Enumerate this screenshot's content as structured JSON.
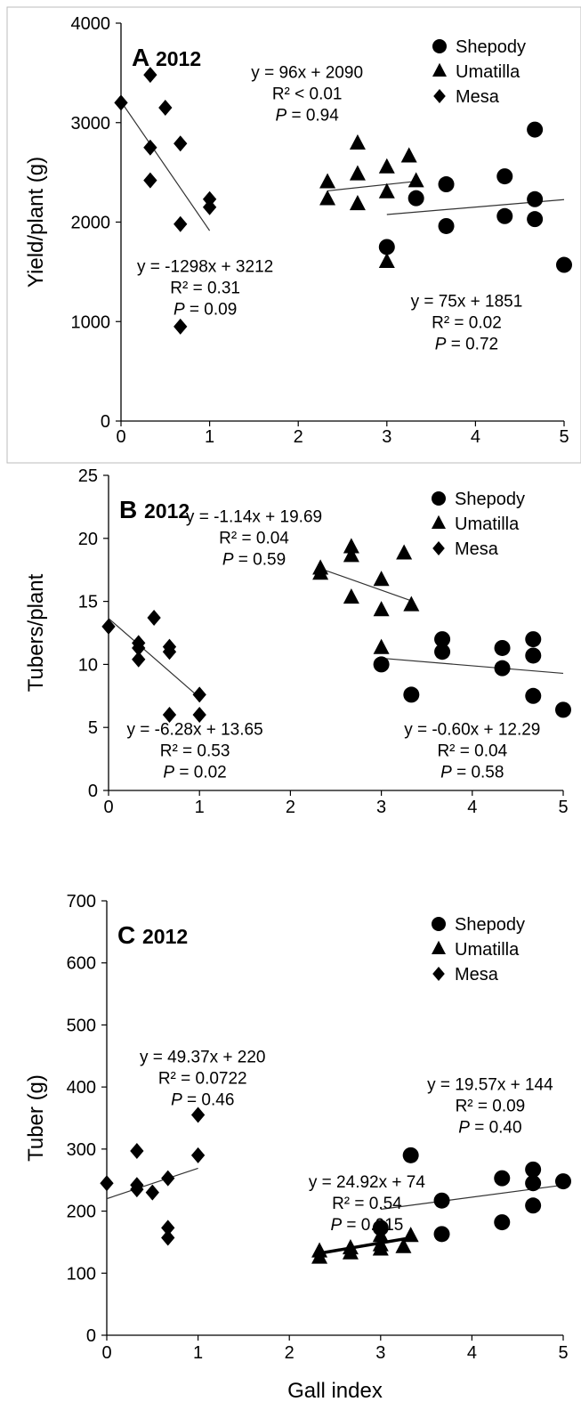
{
  "figure": {
    "xlabel": "Gall index",
    "legend": [
      {
        "name": "Shepody",
        "marker": "circle"
      },
      {
        "name": "Umatilla",
        "marker": "triangle"
      },
      {
        "name": "Mesa",
        "marker": "diamond"
      }
    ],
    "colors": {
      "marker": "#000000",
      "line": "#333333",
      "axis": "#000000",
      "panel_border": "#bbbbbb"
    }
  },
  "chart_data": [
    {
      "type": "scatter",
      "panel_letter": "A",
      "panel_year": "2012",
      "xlabel": "",
      "ylabel": "Yield/plant  (g)",
      "xlim": [
        0,
        5
      ],
      "ylim": [
        0,
        4000
      ],
      "xticks": [
        "0",
        "1",
        "2",
        "3",
        "4",
        "5"
      ],
      "yticks": [
        "0",
        "1000",
        "2000",
        "3000",
        "4000"
      ],
      "legend_position": "top-right",
      "series": [
        {
          "name": "Mesa",
          "marker": "diamond",
          "points": [
            [
              0,
              3200
            ],
            [
              0.33,
              3480
            ],
            [
              0.33,
              2750
            ],
            [
              0.33,
              2420
            ],
            [
              0.5,
              3150
            ],
            [
              0.67,
              2790
            ],
            [
              0.67,
              1980
            ],
            [
              0.67,
              950
            ],
            [
              1,
              2230
            ],
            [
              1,
              2150
            ]
          ]
        },
        {
          "name": "Umatilla",
          "marker": "triangle",
          "points": [
            [
              2.33,
              2400
            ],
            [
              2.33,
              2230
            ],
            [
              2.67,
              2790
            ],
            [
              2.67,
              2480
            ],
            [
              2.67,
              2180
            ],
            [
              3,
              2550
            ],
            [
              3,
              2300
            ],
            [
              3,
              1600
            ],
            [
              3.25,
              2660
            ],
            [
              3.33,
              2410
            ]
          ]
        },
        {
          "name": "Shepody",
          "marker": "circle",
          "points": [
            [
              3,
              1750
            ],
            [
              3.33,
              2240
            ],
            [
              3.67,
              2380
            ],
            [
              3.67,
              1960
            ],
            [
              4.33,
              2460
            ],
            [
              4.33,
              2060
            ],
            [
              4.67,
              2930
            ],
            [
              4.67,
              2230
            ],
            [
              4.67,
              2030
            ],
            [
              5,
              1570
            ]
          ]
        }
      ],
      "trendlines": [
        {
          "series": "Mesa",
          "x": [
            0,
            1
          ],
          "y": [
            3212,
            1914
          ],
          "bold": false
        },
        {
          "series": "Umatilla",
          "x": [
            2.33,
            3.33
          ],
          "y": [
            2314,
            2410
          ],
          "bold": false
        },
        {
          "series": "Shepody",
          "x": [
            3,
            5
          ],
          "y": [
            2076,
            2226
          ],
          "bold": false
        }
      ],
      "annotations": [
        {
          "lines": [
            "y = 96x  + 2090",
            "R² < 0.01",
            "P = 0.94"
          ],
          "at": [
            2.1,
            3450
          ],
          "anchor": "middle"
        },
        {
          "lines": [
            "y = -1298x  + 3212",
            "R² = 0.31",
            "P = 0.09"
          ],
          "at": [
            0.95,
            1500
          ],
          "anchor": "middle"
        },
        {
          "lines": [
            "y = 75x  + 1851",
            "R² = 0.02",
            "P = 0.72"
          ],
          "at": [
            3.9,
            1150
          ],
          "anchor": "middle"
        }
      ]
    },
    {
      "type": "scatter",
      "panel_letter": "B",
      "panel_year": "2012",
      "xlabel": "",
      "ylabel": "Tubers/plant",
      "xlim": [
        0,
        5
      ],
      "ylim": [
        0,
        25
      ],
      "xticks": [
        "0",
        "1",
        "2",
        "3",
        "4",
        "5"
      ],
      "yticks": [
        "0",
        "5",
        "10",
        "15",
        "20",
        "25"
      ],
      "legend_position": "top-right",
      "series": [
        {
          "name": "Mesa",
          "marker": "diamond",
          "points": [
            [
              0,
              13
            ],
            [
              0.33,
              11.7
            ],
            [
              0.33,
              11.3
            ],
            [
              0.33,
              10.4
            ],
            [
              0.5,
              13.7
            ],
            [
              0.67,
              11.4
            ],
            [
              0.67,
              11
            ],
            [
              0.67,
              6
            ],
            [
              1,
              7.6
            ],
            [
              1,
              6
            ]
          ]
        },
        {
          "name": "Umatilla",
          "marker": "triangle",
          "points": [
            [
              2.33,
              17.6
            ],
            [
              2.33,
              17.2
            ],
            [
              2.67,
              19.3
            ],
            [
              2.67,
              18.6
            ],
            [
              2.67,
              15.3
            ],
            [
              3,
              16.7
            ],
            [
              3,
              14.3
            ],
            [
              3,
              11.3
            ],
            [
              3.25,
              18.8
            ],
            [
              3.33,
              14.7
            ]
          ]
        },
        {
          "name": "Shepody",
          "marker": "circle",
          "points": [
            [
              3,
              10
            ],
            [
              3.33,
              7.6
            ],
            [
              3.67,
              12
            ],
            [
              3.67,
              11
            ],
            [
              4.33,
              11.3
            ],
            [
              4.33,
              9.7
            ],
            [
              4.67,
              12
            ],
            [
              4.67,
              10.7
            ],
            [
              4.67,
              7.5
            ],
            [
              5,
              6.4
            ]
          ]
        }
      ],
      "trendlines": [
        {
          "series": "Mesa",
          "x": [
            0,
            1
          ],
          "y": [
            13.65,
            7.37
          ],
          "bold": false
        },
        {
          "series": "Umatilla",
          "x": [
            2.33,
            3.33
          ],
          "y": [
            17.6,
            15.05
          ],
          "bold": false
        },
        {
          "series": "Shepody",
          "x": [
            3,
            5
          ],
          "y": [
            10.49,
            9.29
          ],
          "bold": false
        }
      ],
      "annotations": [
        {
          "lines": [
            "y = -1.14x  + 19.69",
            "R² = 0.04",
            "P = 0.59"
          ],
          "at": [
            1.6,
            21.3
          ],
          "anchor": "middle"
        },
        {
          "lines": [
            "y = -6.28x  + 13.65",
            "R² = 0.53",
            "P = 0.02"
          ],
          "at": [
            0.95,
            4.4
          ],
          "anchor": "middle"
        },
        {
          "lines": [
            "y = -0.60x  + 12.29",
            "R² = 0.04",
            "P = 0.58"
          ],
          "at": [
            4.0,
            4.4
          ],
          "anchor": "middle"
        }
      ]
    },
    {
      "type": "scatter",
      "panel_letter": "C",
      "panel_year": "2012",
      "xlabel": "Gall index",
      "ylabel": "Tuber (g)",
      "xlim": [
        0,
        5
      ],
      "ylim": [
        0,
        700
      ],
      "xticks": [
        "0",
        "1",
        "2",
        "3",
        "4",
        "5"
      ],
      "yticks": [
        "0",
        "100",
        "200",
        "300",
        "400",
        "500",
        "600",
        "700"
      ],
      "legend_position": "top-right",
      "series": [
        {
          "name": "Mesa",
          "marker": "diamond",
          "points": [
            [
              0,
              245
            ],
            [
              0.33,
              297
            ],
            [
              0.33,
              242
            ],
            [
              0.33,
              235
            ],
            [
              0.5,
              230
            ],
            [
              0.67,
              253
            ],
            [
              0.67,
              173
            ],
            [
              0.67,
              157
            ],
            [
              1,
              355
            ],
            [
              1,
              290
            ]
          ]
        },
        {
          "name": "Umatilla",
          "marker": "triangle",
          "points": [
            [
              2.33,
              135
            ],
            [
              2.33,
              125
            ],
            [
              2.67,
              140
            ],
            [
              2.67,
              132
            ],
            [
              3,
              160
            ],
            [
              3,
              145
            ],
            [
              3,
              138
            ],
            [
              3.25,
              142
            ],
            [
              3.33,
              160
            ]
          ]
        },
        {
          "name": "Shepody",
          "marker": "circle",
          "points": [
            [
              3,
              173
            ],
            [
              3.33,
              290
            ],
            [
              3.67,
              217
            ],
            [
              3.67,
              163
            ],
            [
              4.33,
              253
            ],
            [
              4.33,
              182
            ],
            [
              4.67,
              267
            ],
            [
              4.67,
              245
            ],
            [
              4.67,
              209
            ],
            [
              5,
              248
            ]
          ]
        }
      ],
      "trendlines": [
        {
          "series": "Mesa",
          "x": [
            0,
            1
          ],
          "y": [
            220,
            269
          ],
          "bold": false
        },
        {
          "series": "Umatilla",
          "x": [
            2.33,
            3.33
          ],
          "y": [
            132,
            157
          ],
          "bold": true
        },
        {
          "series": "Shepody",
          "x": [
            3,
            5
          ],
          "y": [
            203,
            242
          ],
          "bold": false
        }
      ],
      "annotations": [
        {
          "lines": [
            "y = 49.37x  + 220",
            "R² = 0.0722",
            "P = 0.46"
          ],
          "at": [
            1.05,
            440
          ],
          "anchor": "middle"
        },
        {
          "lines": [
            "y = 24.92x  + 74",
            "R² = 0.54",
            "P = 0.015"
          ],
          "at": [
            2.85,
            238
          ],
          "anchor": "middle"
        },
        {
          "lines": [
            "y = 19.57x  + 144",
            "R² = 0.09",
            "P = 0.40"
          ],
          "at": [
            4.2,
            395
          ],
          "anchor": "middle"
        }
      ]
    }
  ]
}
